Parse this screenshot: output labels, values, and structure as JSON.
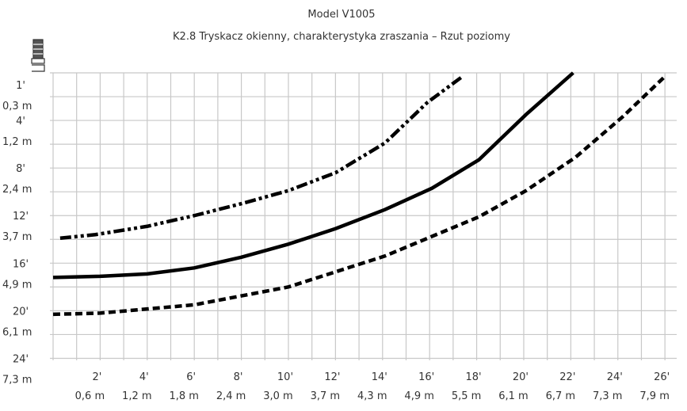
{
  "chart_data": {
    "type": "line",
    "title": "Model V1005",
    "subtitle": "K2.8 Tryskacz okienny, charakterystyka zraszania – Rzut poziomy",
    "xlim": [
      0,
      26.5
    ],
    "ylim": [
      0,
      24.5
    ],
    "xgrid": [
      0,
      1,
      2,
      3,
      4,
      5,
      6,
      7,
      8,
      9,
      10,
      11,
      12,
      13,
      14,
      15,
      16,
      17,
      18,
      19,
      20,
      21,
      22,
      23,
      24,
      25,
      26
    ],
    "ygrid": [
      0,
      2,
      4,
      6,
      8,
      10,
      12,
      14,
      16,
      18,
      20,
      22,
      24
    ],
    "xticks": [
      {
        "value": 2,
        "label": "2'"
      },
      {
        "value": 4,
        "label": "4'"
      },
      {
        "value": 6,
        "label": "6'"
      },
      {
        "value": 8,
        "label": "8'"
      },
      {
        "value": 10,
        "label": "10'"
      },
      {
        "value": 12,
        "label": "12'"
      },
      {
        "value": 14,
        "label": "14'"
      },
      {
        "value": 16,
        "label": "16'"
      },
      {
        "value": 18,
        "label": "18'"
      },
      {
        "value": 20,
        "label": "20'"
      },
      {
        "value": 22,
        "label": "22'"
      },
      {
        "value": 24,
        "label": "24'"
      },
      {
        "value": 26,
        "label": "26'"
      }
    ],
    "xticks_m": [
      {
        "value": 2,
        "label": "0,6 m"
      },
      {
        "value": 4,
        "label": "1,2 m"
      },
      {
        "value": 6,
        "label": "1,8 m"
      },
      {
        "value": 8,
        "label": "2,4 m"
      },
      {
        "value": 10,
        "label": "3,0 m"
      },
      {
        "value": 12,
        "label": "3,7 m"
      },
      {
        "value": 14,
        "label": "4,3 m"
      },
      {
        "value": 16,
        "label": "4,9 m"
      },
      {
        "value": 18,
        "label": "5,5 m"
      },
      {
        "value": 20,
        "label": "6,1 m"
      },
      {
        "value": 22,
        "label": "6,7 m"
      },
      {
        "value": 24,
        "label": "7,3 m"
      },
      {
        "value": 26,
        "label": "7,9 m"
      }
    ],
    "yticks": [
      {
        "value": 1,
        "label": "1'"
      },
      {
        "value": 4,
        "label": "4'"
      },
      {
        "value": 8,
        "label": "8'"
      },
      {
        "value": 12,
        "label": "12'"
      },
      {
        "value": 16,
        "label": "16'"
      },
      {
        "value": 20,
        "label": "20'"
      },
      {
        "value": 24,
        "label": "24'"
      }
    ],
    "yticks_m": [
      {
        "value": 1,
        "label": "0,3 m"
      },
      {
        "value": 4,
        "label": "1,2 m"
      },
      {
        "value": 8,
        "label": "2,4 m"
      },
      {
        "value": 12,
        "label": "3,7 m"
      },
      {
        "value": 16,
        "label": "4,9 m"
      },
      {
        "value": 20,
        "label": "6,1 m"
      },
      {
        "value": 24,
        "label": "7,3 m"
      }
    ],
    "series": [
      {
        "color": "#000000",
        "dash": "dashdotdot",
        "x": [
          0.3,
          1.8,
          4,
          6,
          8,
          10,
          12,
          14.1,
          15.9,
          17.4
        ],
        "values": [
          13.9,
          13.6,
          12.9,
          12,
          11,
          9.9,
          8.4,
          5.9,
          2.5,
          0.3
        ]
      },
      {
        "color": "#000000",
        "dash": "solid",
        "x": [
          0,
          2,
          4,
          6,
          8,
          10,
          12,
          14.1,
          16.1,
          18.1,
          20.1,
          22.1
        ],
        "values": [
          17.2,
          17.1,
          16.9,
          16.4,
          15.5,
          14.4,
          13.1,
          11.5,
          9.7,
          7.3,
          3.5,
          0
        ]
      },
      {
        "color": "#000000",
        "dash": "dashed",
        "x": [
          0,
          2,
          6,
          10,
          14.1,
          18.1,
          20.1,
          22.2,
          24.2,
          26
        ],
        "values": [
          20.3,
          20.2,
          19.5,
          18,
          15.4,
          12.1,
          9.9,
          7.1,
          3.7,
          0.3
        ]
      }
    ]
  }
}
